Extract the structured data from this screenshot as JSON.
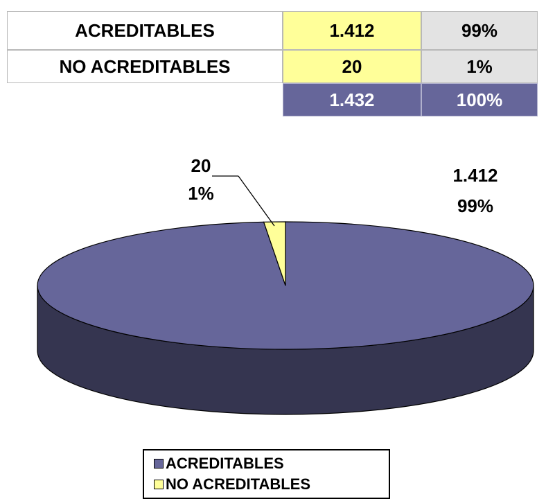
{
  "table": {
    "rows": [
      {
        "label": "ACREDITABLES",
        "value": "1.412",
        "percent": "99%"
      },
      {
        "label": "NO ACREDITABLES",
        "value": "20",
        "percent": "1%"
      }
    ],
    "total": {
      "value": "1.432",
      "percent": "100%"
    }
  },
  "chart_data": {
    "type": "pie",
    "style": "3d",
    "categories": [
      "ACREDITABLES",
      "NO ACREDITABLES"
    ],
    "values": [
      1412,
      20
    ],
    "percents": [
      99,
      1
    ],
    "data_labels": [
      {
        "value": "1.412",
        "percent": "99%"
      },
      {
        "value": "20",
        "percent": "1%"
      }
    ],
    "colors": [
      "#66669a",
      "#ffff99"
    ],
    "legend": {
      "placement": "bottom",
      "entries": [
        "ACREDITABLES",
        "NO ACREDITABLES"
      ]
    }
  }
}
